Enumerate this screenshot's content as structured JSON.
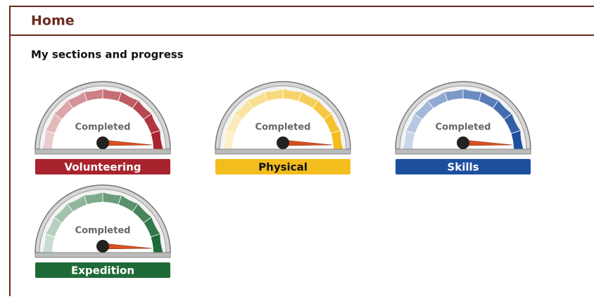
{
  "header": {
    "title": "Home"
  },
  "content": {
    "heading": "My sections and progress",
    "sections": [
      {
        "name": "Volunteering",
        "status": "Completed",
        "color": "#a8232e",
        "label_color": "#ffffff"
      },
      {
        "name": "Physical",
        "status": "Completed",
        "color": "#f2bd1d",
        "label_color": "#111111"
      },
      {
        "name": "Skills",
        "status": "Completed",
        "color": "#1d4f9f",
        "label_color": "#ffffff"
      },
      {
        "name": "Expedition",
        "status": "Completed",
        "color": "#1f6b38",
        "label_color": "#ffffff"
      }
    ]
  }
}
